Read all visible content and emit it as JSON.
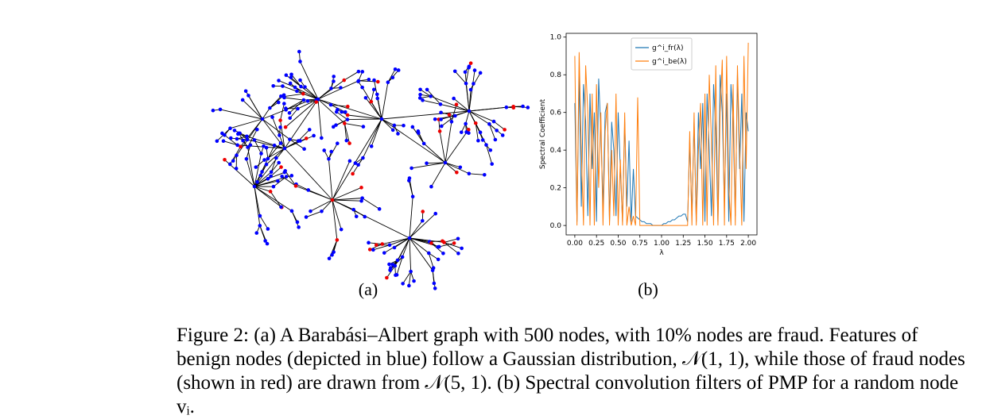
{
  "figure": {
    "subfigures": [
      {
        "label": "(a)"
      },
      {
        "label": "(b)"
      }
    ],
    "caption": "Figure 2: (a) A Barabási–Albert graph with 500 nodes, with 10% nodes are fraud. Features of benign nodes (depicted in blue) follow a Gaussian distribution, 𝒩(1, 1), while those of fraud nodes (shown in red) are drawn from 𝒩(5, 1). (b) Spectral convolution filters of PMP for a random node vᵢ."
  },
  "chart_data": {
    "type": "line",
    "xlabel": "λ",
    "ylabel": "Spectral Coefficient",
    "x": [
      0,
      0.025,
      0.05,
      0.075,
      0.1,
      0.125,
      0.15,
      0.175,
      0.2,
      0.225,
      0.25,
      0.275,
      0.3,
      0.325,
      0.35,
      0.375,
      0.4,
      0.425,
      0.45,
      0.475,
      0.5,
      0.525,
      0.55,
      0.575,
      0.6,
      0.625,
      0.65,
      0.675,
      0.7,
      0.725,
      0.75,
      0.775,
      0.8,
      0.825,
      0.85,
      0.875,
      0.9,
      0.925,
      0.95,
      0.975,
      1.0,
      1.025,
      1.05,
      1.075,
      1.1,
      1.125,
      1.15,
      1.175,
      1.2,
      1.225,
      1.25,
      1.275,
      1.3,
      1.325,
      1.35,
      1.375,
      1.4,
      1.425,
      1.45,
      1.475,
      1.5,
      1.525,
      1.55,
      1.575,
      1.6,
      1.625,
      1.65,
      1.675,
      1.7,
      1.725,
      1.75,
      1.775,
      1.8,
      1.825,
      1.85,
      1.875,
      1.9,
      1.925,
      1.95,
      1.975,
      2.0
    ],
    "series": [
      {
        "name": "g^i_fr(λ)",
        "color": "#1f77b4",
        "values": [
          0.65,
          0.02,
          0.8,
          0.1,
          0.75,
          0.55,
          0.05,
          0.7,
          0.3,
          0.6,
          0.02,
          0.78,
          0.5,
          0.1,
          0.6,
          0.65,
          0.02,
          0.55,
          0.4,
          0.05,
          0.6,
          0.3,
          0.02,
          0.55,
          0.1,
          0.45,
          0.02,
          0.3,
          0.05,
          0.04,
          0.03,
          0.02,
          0.02,
          0.01,
          0.01,
          0.01,
          0.0,
          0.0,
          0.0,
          0.0,
          0.0,
          0.01,
          0.01,
          0.02,
          0.02,
          0.03,
          0.03,
          0.04,
          0.05,
          0.05,
          0.06,
          0.06,
          0.02,
          0.45,
          0.05,
          0.55,
          0.02,
          0.6,
          0.3,
          0.65,
          0.02,
          0.7,
          0.4,
          0.05,
          0.75,
          0.5,
          0.02,
          0.8,
          0.6,
          0.1,
          0.7,
          0.02,
          0.75,
          0.55,
          0.05,
          0.8,
          0.3,
          0.7,
          0.02,
          0.6,
          0.5
        ]
      },
      {
        "name": "g^i_be(λ)",
        "color": "#ff7f0e",
        "values": [
          0.9,
          0.0,
          0.92,
          0.4,
          0.0,
          0.85,
          0.6,
          0.0,
          0.7,
          0.0,
          0.75,
          0.2,
          0.6,
          0.0,
          0.5,
          0.65,
          0.0,
          0.4,
          0.05,
          0.7,
          0.0,
          0.35,
          0.0,
          0.6,
          0.0,
          0.1,
          0.0,
          0.05,
          0.0,
          0.68,
          0.0,
          0.0,
          0.0,
          0.0,
          0.0,
          0.0,
          0.0,
          0.0,
          0.0,
          0.0,
          0.0,
          0.0,
          0.0,
          0.0,
          0.0,
          0.0,
          0.0,
          0.0,
          0.0,
          0.0,
          0.0,
          0.0,
          0.0,
          0.5,
          0.0,
          0.6,
          0.0,
          0.4,
          0.65,
          0.0,
          0.7,
          0.0,
          0.8,
          0.45,
          0.0,
          0.85,
          0.0,
          0.6,
          0.88,
          0.0,
          0.9,
          0.2,
          0.0,
          0.75,
          0.0,
          0.85,
          0.4,
          0.0,
          0.9,
          0.3,
          0.97
        ]
      }
    ],
    "xlim": [
      -0.1,
      2.1
    ],
    "ylim": [
      -0.05,
      1.02
    ],
    "xticks": [
      {
        "value": 0,
        "label": "0.00"
      },
      {
        "value": 0.25,
        "label": "0.25"
      },
      {
        "value": 0.5,
        "label": "0.50"
      },
      {
        "value": 0.75,
        "label": "0.75"
      },
      {
        "value": 1,
        "label": "1.00"
      },
      {
        "value": 1.25,
        "label": "1.25"
      },
      {
        "value": 1.5,
        "label": "1.50"
      },
      {
        "value": 1.75,
        "label": "1.75"
      },
      {
        "value": 2,
        "label": "2.00"
      }
    ],
    "yticks": [
      {
        "value": 0,
        "label": "0.0"
      },
      {
        "value": 0.2,
        "label": "0.2"
      },
      {
        "value": 0.4,
        "label": "0.4"
      },
      {
        "value": 0.6,
        "label": "0.6"
      },
      {
        "value": 0.8,
        "label": "0.8"
      },
      {
        "value": 1,
        "label": "1.0"
      }
    ],
    "legend": "upper center"
  }
}
